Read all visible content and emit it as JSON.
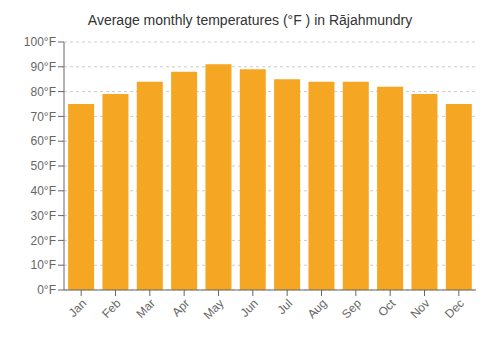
{
  "chart_data": {
    "type": "bar",
    "title": "Average monthly temperatures (°F ) in Rājahmundry",
    "categories": [
      "Jan",
      "Feb",
      "Mar",
      "Apr",
      "May",
      "Jun",
      "Jul",
      "Aug",
      "Sep",
      "Oct",
      "Nov",
      "Dec"
    ],
    "values": [
      75,
      79,
      84,
      88,
      91,
      89,
      85,
      84,
      84,
      82,
      79,
      75
    ],
    "color": "#F5A623",
    "ylim": [
      0,
      100
    ],
    "yticks": [
      {
        "value": 0,
        "label": "0°F"
      },
      {
        "value": 10,
        "label": "10°F"
      },
      {
        "value": 20,
        "label": "20°F"
      },
      {
        "value": 30,
        "label": "30°F"
      },
      {
        "value": 40,
        "label": "40°F"
      },
      {
        "value": 50,
        "label": "50°F"
      },
      {
        "value": 60,
        "label": "60°F"
      },
      {
        "value": 70,
        "label": "70°F"
      },
      {
        "value": 80,
        "label": "80°F"
      },
      {
        "value": 90,
        "label": "90°F"
      },
      {
        "value": 100,
        "label": "100°F"
      }
    ],
    "grid": true
  }
}
